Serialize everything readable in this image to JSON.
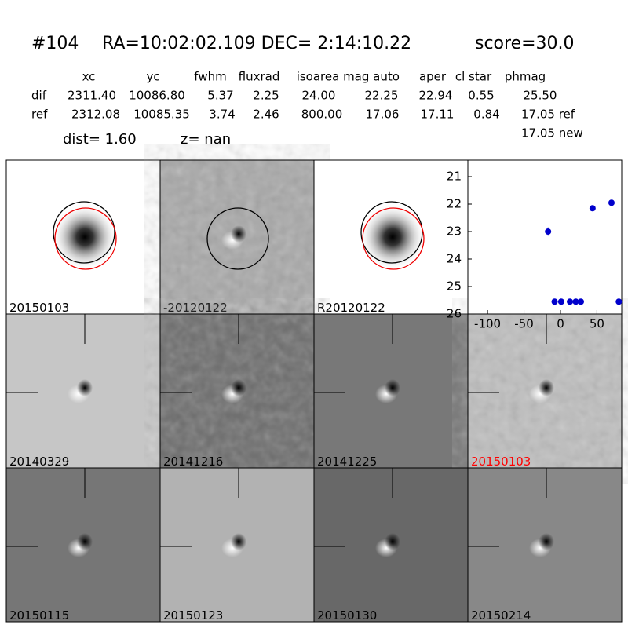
{
  "header": {
    "id": "#104",
    "coords": "RA=10:02:02.109 DEC= 2:14:10.22",
    "score": "score=30.0"
  },
  "table": {
    "columns": [
      "xc",
      "yc",
      "fwhm",
      "fluxrad",
      "isoarea",
      "mag auto",
      "aper",
      "cl star",
      "phmag"
    ],
    "rows": [
      [
        "dif",
        "2311.40",
        "10086.80",
        "5.37",
        "2.25",
        "24.00",
        "22.25",
        "22.94",
        "0.55",
        "25.50"
      ],
      [
        "ref",
        "2312.08",
        "10085.35",
        "3.74",
        "2.46",
        "800.00",
        "17.06",
        "17.11",
        "0.84",
        "17.05 ref"
      ]
    ],
    "extra": "17.05 new"
  },
  "dist": "dist=  1.60",
  "z": "z=   nan",
  "panels": [
    "20150103",
    "-20120122",
    "R20120122",
    "20140329",
    "20141216",
    "20141225",
    "20150103",
    "20150115",
    "20150123",
    "20150130",
    "20150214"
  ],
  "plot": {
    "type": "scatter",
    "color": "#0000cc",
    "highlight_color": "#ff0000",
    "x": [
      -17,
      -8,
      1,
      13,
      21,
      28,
      44,
      70,
      80
    ],
    "values": [
      23.0,
      25.55,
      25.55,
      25.55,
      25.55,
      25.55,
      22.15,
      21.95,
      25.55
    ],
    "errors": [
      0.15,
      0,
      0,
      0,
      0,
      0,
      0.05,
      0.03,
      0
    ],
    "xlim": [
      -127,
      84
    ],
    "ylim": [
      26,
      20.4
    ],
    "xticks": [
      -100,
      -50,
      0,
      50
    ],
    "yticks": [
      21,
      22,
      23,
      24,
      25,
      26
    ]
  }
}
